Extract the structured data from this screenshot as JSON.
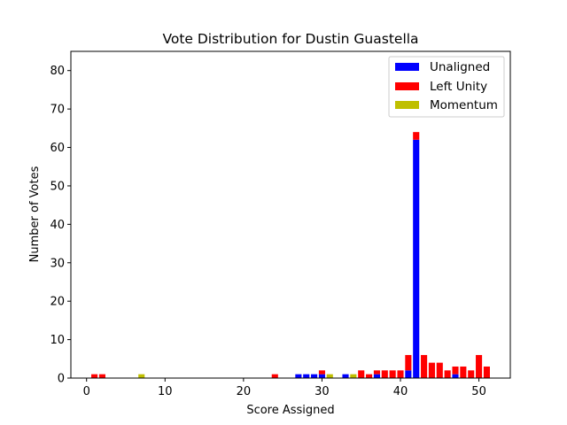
{
  "chart_data": {
    "type": "bar",
    "stacked": true,
    "title": "Vote Distribution for Dustin Guastella",
    "xlabel": "Score Assigned",
    "ylabel": "Number of Votes",
    "xlim": [
      -2,
      54
    ],
    "ylim": [
      0,
      85
    ],
    "xticks": [
      0,
      10,
      20,
      30,
      40,
      50
    ],
    "yticks": [
      0,
      10,
      20,
      30,
      40,
      50,
      60,
      70,
      80
    ],
    "grid": false,
    "legend_position": "top-right",
    "series": [
      {
        "name": "Unaligned",
        "color": "#0000ff",
        "points": [
          {
            "x": 27,
            "y": 1
          },
          {
            "x": 28,
            "y": 1
          },
          {
            "x": 29,
            "y": 1
          },
          {
            "x": 30,
            "y": 1
          },
          {
            "x": 33,
            "y": 1
          },
          {
            "x": 37,
            "y": 1
          },
          {
            "x": 41,
            "y": 2
          },
          {
            "x": 42,
            "y": 62
          },
          {
            "x": 47,
            "y": 1
          }
        ]
      },
      {
        "name": "Left Unity",
        "color": "#ff0000",
        "points": [
          {
            "x": 1,
            "y": 1
          },
          {
            "x": 2,
            "y": 1
          },
          {
            "x": 24,
            "y": 1
          },
          {
            "x": 30,
            "y": 1
          },
          {
            "x": 35,
            "y": 2
          },
          {
            "x": 36,
            "y": 1
          },
          {
            "x": 37,
            "y": 1
          },
          {
            "x": 38,
            "y": 2
          },
          {
            "x": 39,
            "y": 2
          },
          {
            "x": 40,
            "y": 2
          },
          {
            "x": 41,
            "y": 4
          },
          {
            "x": 42,
            "y": 2
          },
          {
            "x": 43,
            "y": 6
          },
          {
            "x": 44,
            "y": 4
          },
          {
            "x": 45,
            "y": 4
          },
          {
            "x": 46,
            "y": 2
          },
          {
            "x": 47,
            "y": 2
          },
          {
            "x": 48,
            "y": 3
          },
          {
            "x": 49,
            "y": 2
          },
          {
            "x": 50,
            "y": 6
          },
          {
            "x": 51,
            "y": 3
          }
        ]
      },
      {
        "name": "Momentum",
        "color": "#bfbf00",
        "points": [
          {
            "x": 7,
            "y": 1
          },
          {
            "x": 31,
            "y": 1
          },
          {
            "x": 34,
            "y": 1
          }
        ]
      }
    ]
  }
}
